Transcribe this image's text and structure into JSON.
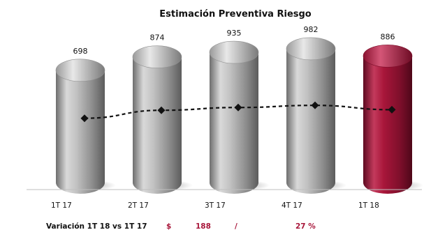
{
  "chart_data": {
    "type": "bar",
    "title": "Estimación Preventiva Riesgo",
    "categories": [
      "1T 17",
      "2T 17",
      "3T 17",
      "4T 17",
      "1T 18"
    ],
    "values": [
      698,
      874,
      935,
      982,
      886
    ],
    "value_labels": [
      "698",
      "874",
      "935",
      "982",
      "886"
    ],
    "line_series": {
      "values": [
        698,
        874,
        935,
        982,
        886
      ],
      "style": "dashed",
      "marker": "diamond"
    },
    "ylim": [
      0,
      1150
    ],
    "grid": false,
    "colors": {
      "bar": "#a9a9a9",
      "highlight_bar": "#a8163a",
      "line": "#111111"
    },
    "highlight_index": 4
  },
  "footer": {
    "label": "Variación 1T 18 vs 1T 17",
    "currency_symbol": "$",
    "amount": "188",
    "separator": "/",
    "percent": "27 %",
    "accent_color": "#a8163a"
  }
}
